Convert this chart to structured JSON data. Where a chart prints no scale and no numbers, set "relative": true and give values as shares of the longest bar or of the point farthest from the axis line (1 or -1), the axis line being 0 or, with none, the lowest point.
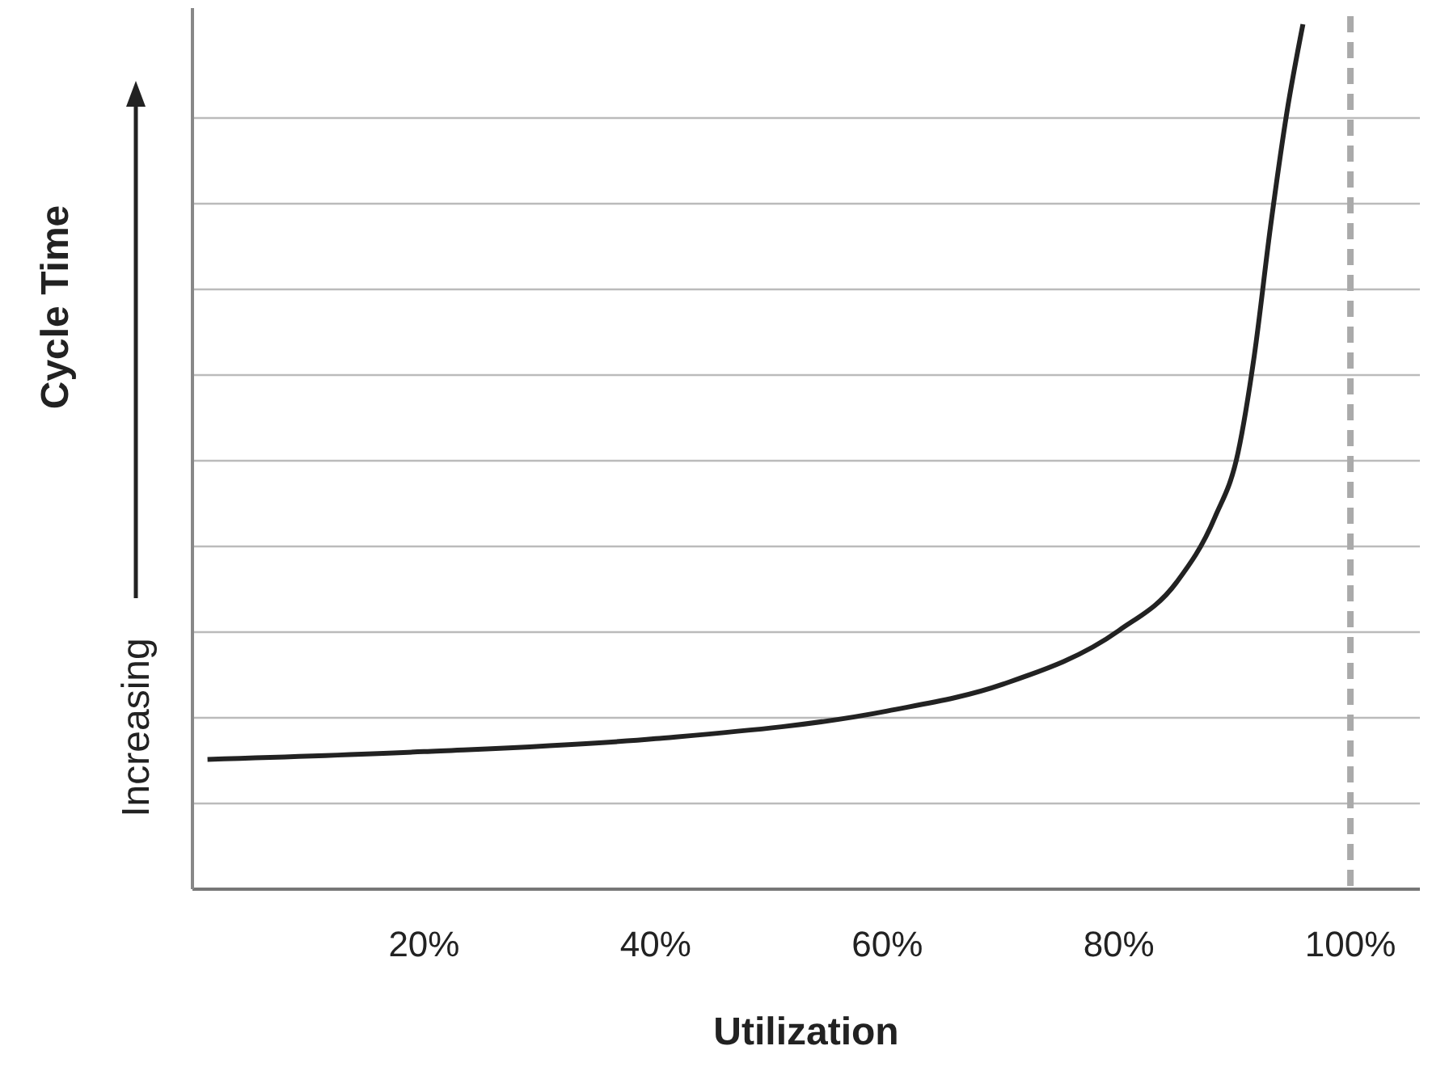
{
  "chart_data": {
    "type": "line",
    "xlabel": "Utilization",
    "ylabel": "Cycle Time",
    "annotations": [
      "Increasing"
    ],
    "relative": true,
    "x": [
      1.3,
      20,
      40,
      60,
      70,
      80,
      85,
      88.3,
      90.3,
      91.7,
      93.1,
      94.5,
      95.9
    ],
    "series": [
      {
        "color": "#222222",
        "values": [
          0.15,
          0.159,
          0.174,
          0.206,
          0.237,
          0.299,
          0.355,
          0.43,
          0.505,
          0.617,
          0.766,
          0.897,
          1
        ]
      }
    ],
    "xlim": [
      0,
      106
    ],
    "xticks": [
      {
        "value": 20,
        "label": "20%"
      },
      {
        "value": 40,
        "label": "40%"
      },
      {
        "value": 60,
        "label": "60%"
      },
      {
        "value": 80,
        "label": "80%"
      },
      {
        "value": 100,
        "label": "100%"
      }
    ],
    "grid": "y",
    "marker": "none",
    "line_style": "solid",
    "ref_lines": [
      {
        "axis": "x",
        "value": 100,
        "color": "#aaaaaa",
        "line_style": "dashed"
      }
    ]
  }
}
